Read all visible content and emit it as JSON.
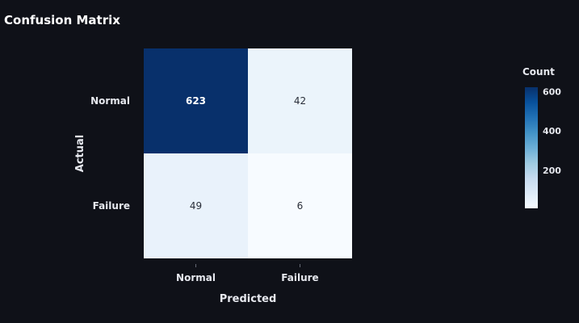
{
  "chart_data": {
    "type": "heatmap",
    "title": "Confusion Matrix",
    "xlabel": "Predicted",
    "ylabel": "Actual",
    "x_categories": [
      "Normal",
      "Failure"
    ],
    "y_categories": [
      "Normal",
      "Failure"
    ],
    "values": [
      [
        623,
        42
      ],
      [
        49,
        6
      ]
    ],
    "colorbar": {
      "title": "Count",
      "ticks": [
        200,
        400,
        600
      ],
      "range": [
        6,
        623
      ]
    },
    "colorscale": [
      "#f7fbff",
      "#deebf7",
      "#c6dbef",
      "#9ecae1",
      "#6baed6",
      "#4292c6",
      "#2171b5",
      "#08519c",
      "#08306b"
    ]
  },
  "colors": {
    "background": "#0f1118",
    "text": "#e6e8ee",
    "dark_cell_text": "#ffffff",
    "light_cell_text": "#2a2f3a"
  }
}
